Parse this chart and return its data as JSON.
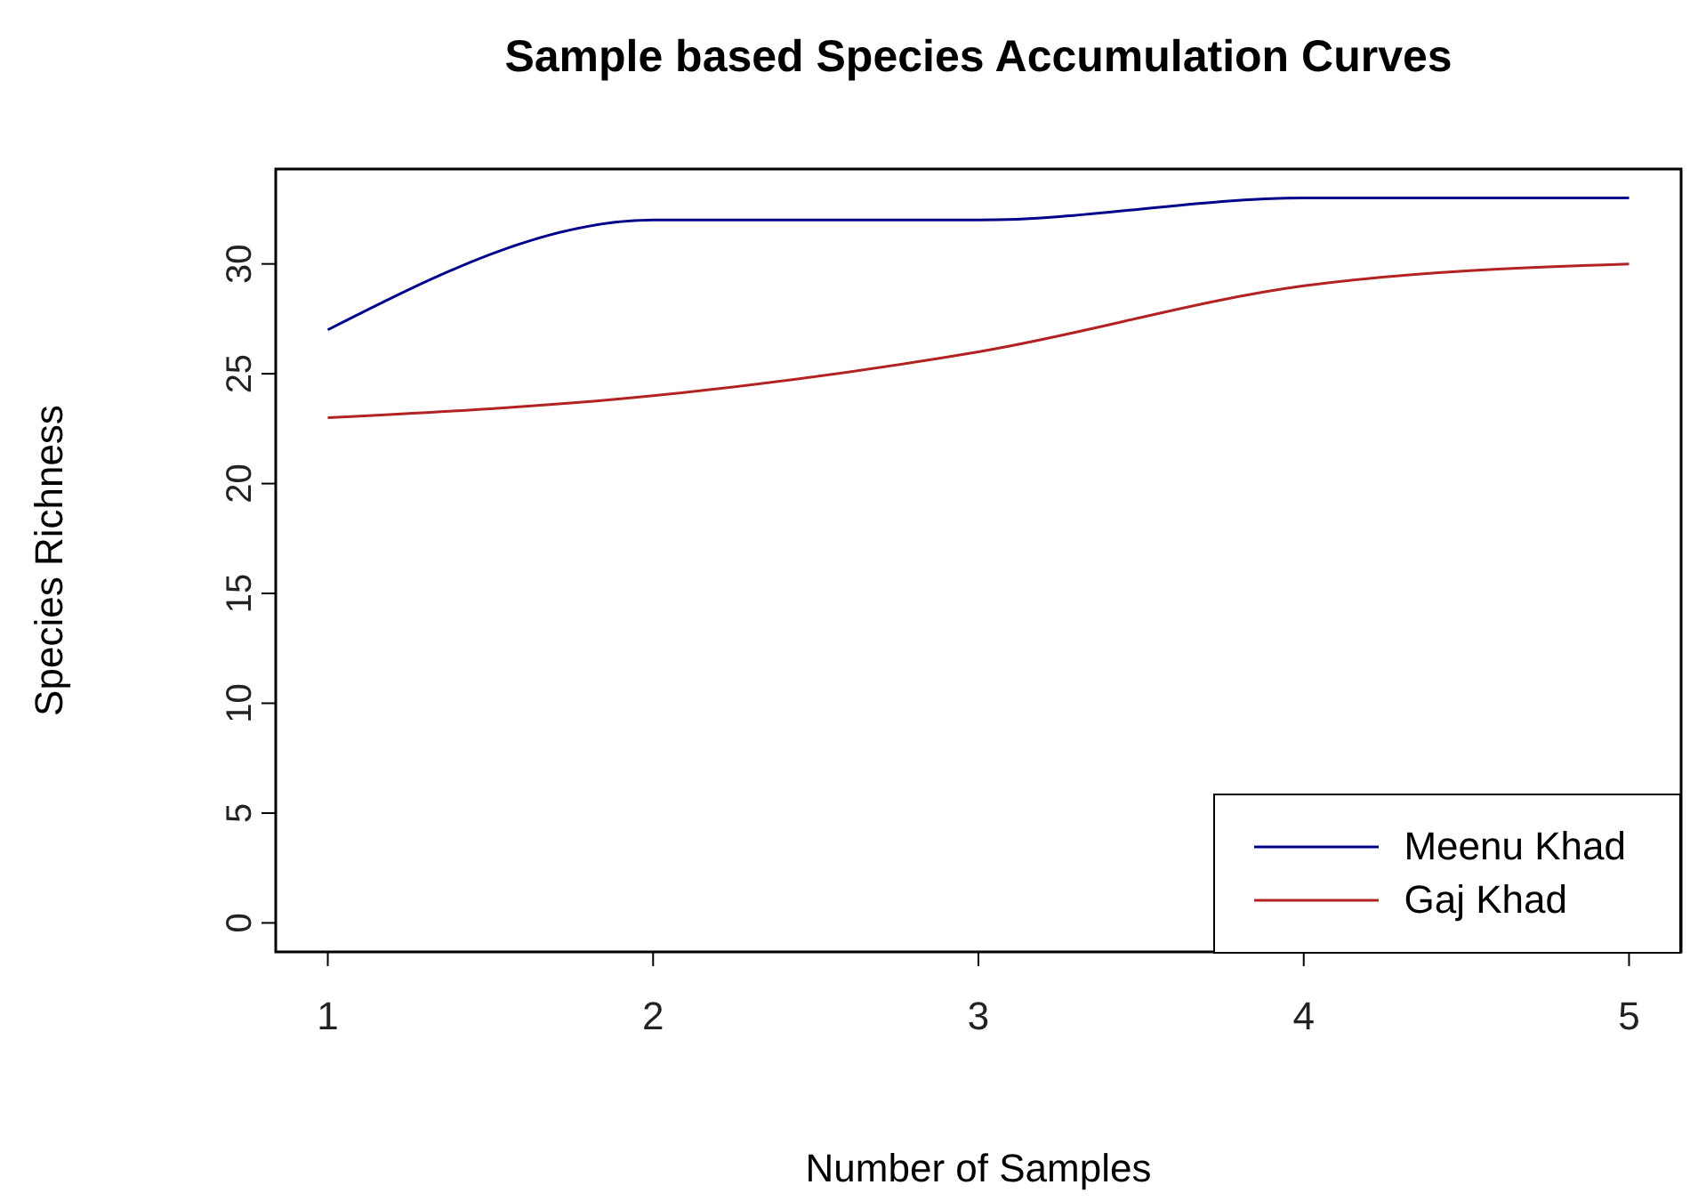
{
  "chart_data": {
    "type": "line",
    "title": "Sample based Species Accumulation Curves",
    "xlabel": "Number of Samples",
    "ylabel": "Species Richness",
    "x": [
      1,
      2,
      3,
      4,
      5
    ],
    "series": [
      {
        "name": "Meenu Khad",
        "color": "#00008b",
        "values": [
          27,
          32,
          32,
          33,
          33
        ]
      },
      {
        "name": "Gaj Khad",
        "color": "#b22222",
        "values": [
          23,
          24,
          26,
          29,
          30
        ]
      }
    ],
    "xlim": [
      0.84,
      5.16
    ],
    "xticks": [
      1,
      2,
      3,
      4,
      5
    ],
    "ylim": [
      -1.32,
      34.32
    ],
    "yticks": [
      0,
      5,
      10,
      15,
      20,
      25,
      30
    ],
    "grid": false,
    "legend": "bottom right",
    "marker": "none",
    "line_style": "solid"
  }
}
